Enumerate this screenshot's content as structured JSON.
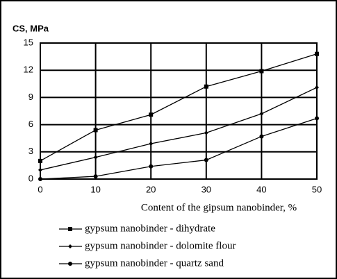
{
  "chart_data": {
    "type": "line",
    "y_label": "CS, MPa",
    "x_label": "Content of the gipsum nanobinder, %",
    "x": [
      0,
      10,
      20,
      30,
      40,
      50
    ],
    "series": [
      {
        "name": "gypsum nanobinder - dihydrate",
        "color": "#000000",
        "marker": "square",
        "values": [
          2.0,
          5.4,
          7.1,
          10.2,
          11.9,
          13.8
        ]
      },
      {
        "name": "gypsum nanobinder - dolomite flour",
        "color": "#000000",
        "marker": "diamond",
        "values": [
          1.0,
          2.4,
          3.9,
          5.1,
          7.2,
          10.1
        ]
      },
      {
        "name": "gypsum nanobinder - quartz sand",
        "color": "#000000",
        "marker": "circle",
        "values": [
          0,
          0.3,
          1.4,
          2.1,
          4.7,
          6.7
        ]
      }
    ],
    "xlim": [
      0,
      50
    ],
    "xticks": [
      0,
      10,
      20,
      30,
      40,
      50
    ],
    "ylim": [
      0,
      15
    ],
    "yticks": [
      0,
      3,
      6,
      9,
      12,
      15
    ],
    "grid": true
  }
}
